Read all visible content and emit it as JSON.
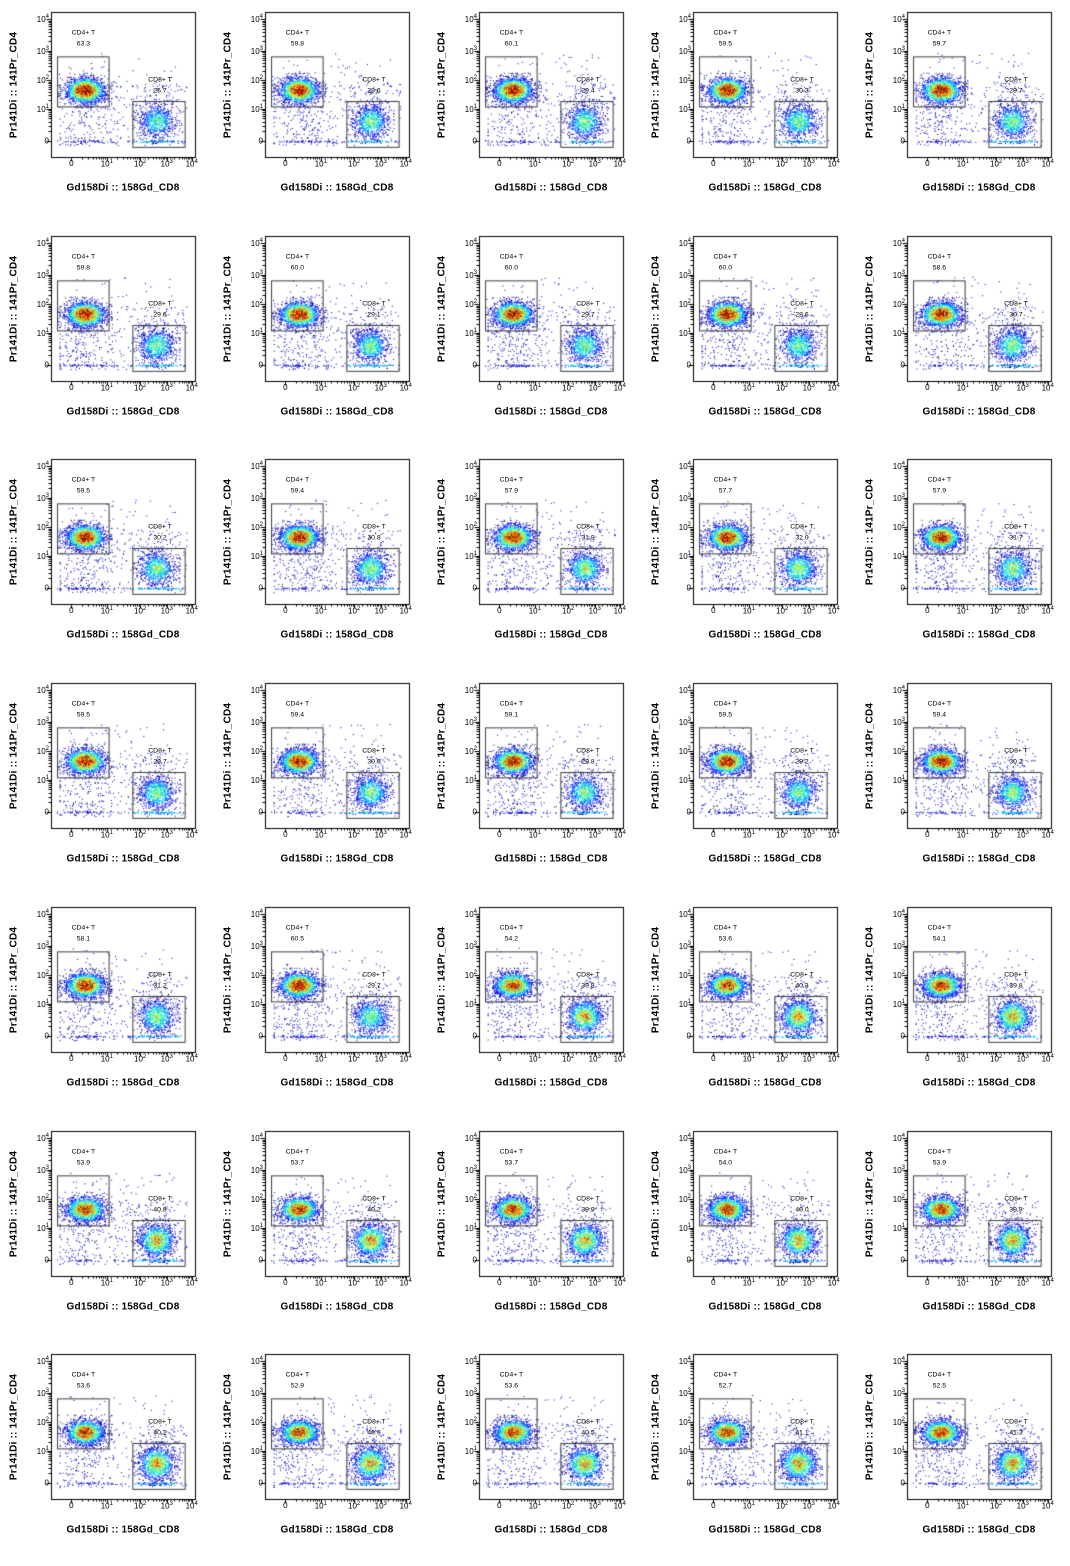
{
  "chart_data": {
    "type": "scatter",
    "subtype": "flow-cytometry-density-grid",
    "title": "",
    "grid": {
      "rows": 7,
      "cols": 5
    },
    "xlabel": "Gd158Di :: 158Gd_CD8",
    "ylabel": "Pr141Di :: 141Pr_CD4",
    "axis_scale": "arcsinh-log",
    "x_ticks": [
      "0",
      "10^1",
      "10^2",
      "10^3",
      "10^4"
    ],
    "y_ticks": [
      "0",
      "10^1",
      "10^2",
      "10^3",
      "10^4"
    ],
    "xlim": [
      "<0",
      "10^4"
    ],
    "ylim": [
      "<0",
      "10^4"
    ],
    "grid_lines": false,
    "legend": "none",
    "gates": {
      "cd4": {
        "label": "CD4+ T"
      },
      "cd8": {
        "label": "CD8+ T"
      }
    },
    "colors": {
      "background": "#ffffff",
      "axis": "#000000",
      "gate_line": "#3d3d3d",
      "density_colormap": "jet",
      "density_low": "#0000a0",
      "density_high": "#d00000"
    },
    "panels": [
      {
        "row": 1,
        "col": 1,
        "cd4_pct": "63.3",
        "cd8_pct": "25.7"
      },
      {
        "row": 1,
        "col": 2,
        "cd4_pct": "59.8",
        "cd8_pct": "29.6"
      },
      {
        "row": 1,
        "col": 3,
        "cd4_pct": "60.1",
        "cd8_pct": "29.4"
      },
      {
        "row": 1,
        "col": 4,
        "cd4_pct": "59.5",
        "cd8_pct": "30.3"
      },
      {
        "row": 1,
        "col": 5,
        "cd4_pct": "59.7",
        "cd8_pct": "29.7"
      },
      {
        "row": 2,
        "col": 1,
        "cd4_pct": "59.8",
        "cd8_pct": "29.6"
      },
      {
        "row": 2,
        "col": 2,
        "cd4_pct": "60.0",
        "cd8_pct": "29.1"
      },
      {
        "row": 2,
        "col": 3,
        "cd4_pct": "60.0",
        "cd8_pct": "29.7"
      },
      {
        "row": 2,
        "col": 4,
        "cd4_pct": "60.0",
        "cd8_pct": "28.6"
      },
      {
        "row": 2,
        "col": 5,
        "cd4_pct": "58.6",
        "cd8_pct": "30.7"
      },
      {
        "row": 3,
        "col": 1,
        "cd4_pct": "59.5",
        "cd8_pct": "30.2"
      },
      {
        "row": 3,
        "col": 2,
        "cd4_pct": "59.4",
        "cd8_pct": "30.8"
      },
      {
        "row": 3,
        "col": 3,
        "cd4_pct": "57.9",
        "cd8_pct": "31.9"
      },
      {
        "row": 3,
        "col": 4,
        "cd4_pct": "57.7",
        "cd8_pct": "32.0"
      },
      {
        "row": 3,
        "col": 5,
        "cd4_pct": "57.9",
        "cd8_pct": "31.7"
      },
      {
        "row": 4,
        "col": 1,
        "cd4_pct": "59.5",
        "cd8_pct": "29.7"
      },
      {
        "row": 4,
        "col": 2,
        "cd4_pct": "59.4",
        "cd8_pct": "30.0"
      },
      {
        "row": 4,
        "col": 3,
        "cd4_pct": "59.1",
        "cd8_pct": "29.8"
      },
      {
        "row": 4,
        "col": 4,
        "cd4_pct": "59.5",
        "cd8_pct": "29.2"
      },
      {
        "row": 4,
        "col": 5,
        "cd4_pct": "59.4",
        "cd8_pct": "30.2"
      },
      {
        "row": 5,
        "col": 1,
        "cd4_pct": "58.1",
        "cd8_pct": "31.2"
      },
      {
        "row": 5,
        "col": 2,
        "cd4_pct": "60.5",
        "cd8_pct": "29.7"
      },
      {
        "row": 5,
        "col": 3,
        "cd4_pct": "54.2",
        "cd8_pct": "39.8"
      },
      {
        "row": 5,
        "col": 4,
        "cd4_pct": "53.6",
        "cd8_pct": "40.3"
      },
      {
        "row": 5,
        "col": 5,
        "cd4_pct": "54.1",
        "cd8_pct": "39.8"
      },
      {
        "row": 6,
        "col": 1,
        "cd4_pct": "53.9",
        "cd8_pct": "40.8"
      },
      {
        "row": 6,
        "col": 2,
        "cd4_pct": "53.7",
        "cd8_pct": "40.2"
      },
      {
        "row": 6,
        "col": 3,
        "cd4_pct": "53.7",
        "cd8_pct": "39.9"
      },
      {
        "row": 6,
        "col": 4,
        "cd4_pct": "54.0",
        "cd8_pct": "40.0"
      },
      {
        "row": 6,
        "col": 5,
        "cd4_pct": "53.9",
        "cd8_pct": "39.8"
      },
      {
        "row": 7,
        "col": 1,
        "cd4_pct": "53.6",
        "cd8_pct": "40.2"
      },
      {
        "row": 7,
        "col": 2,
        "cd4_pct": "52.9",
        "cd8_pct": "40.9"
      },
      {
        "row": 7,
        "col": 3,
        "cd4_pct": "53.6",
        "cd8_pct": "40.5"
      },
      {
        "row": 7,
        "col": 4,
        "cd4_pct": "52.7",
        "cd8_pct": "41.1"
      },
      {
        "row": 7,
        "col": 5,
        "cd4_pct": "52.5",
        "cd8_pct": "41.3"
      }
    ]
  }
}
